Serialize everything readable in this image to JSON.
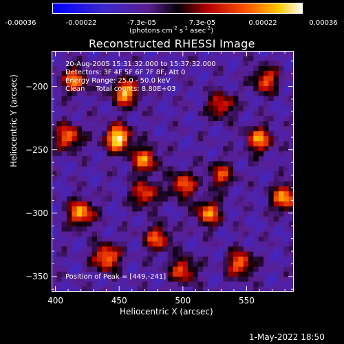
{
  "colorbar": {
    "ticks": [
      "-0.00036",
      "-0.00022",
      "-7.3e-05",
      "7.3e-05",
      "0.00022",
      "0.00036"
    ],
    "unit_main": "(photons cm",
    "unit_exp1": "-2",
    "unit_mid1": " s",
    "unit_exp2": "-1",
    "unit_mid2": " asec",
    "unit_exp3": "-2",
    "unit_end": ")"
  },
  "chart_data": {
    "type": "heatmap",
    "title": "Reconstructed RHESSI Image",
    "xlabel": "Heliocentric X (arcsec)",
    "ylabel": "Heliocentric Y (arcsec)",
    "xlim": [
      397,
      587
    ],
    "ylim": [
      -362,
      -172
    ],
    "xticks": [
      400,
      450,
      500,
      550
    ],
    "yticks": [
      -200,
      -250,
      -300,
      -350
    ],
    "value_range": [
      -0.00036,
      0.00036
    ],
    "colormap": "blue-purple-black-red-orange-yellow-white",
    "peak": [
      449,
      -241
    ],
    "hotspots": [
      {
        "x": 449,
        "y": -241,
        "value": 0.00036
      },
      {
        "x": 455,
        "y": -205,
        "value": 0.00028
      },
      {
        "x": 420,
        "y": -300,
        "value": 0.00027
      },
      {
        "x": 440,
        "y": -335,
        "value": 0.00026
      },
      {
        "x": 410,
        "y": -240,
        "value": 0.00022
      },
      {
        "x": 415,
        "y": -195,
        "value": 0.0002
      },
      {
        "x": 470,
        "y": -258,
        "value": 0.00022
      },
      {
        "x": 470,
        "y": -285,
        "value": 0.00018
      },
      {
        "x": 500,
        "y": -278,
        "value": 0.0002
      },
      {
        "x": 520,
        "y": -300,
        "value": 0.00022
      },
      {
        "x": 560,
        "y": -242,
        "value": 0.00023
      },
      {
        "x": 580,
        "y": -288,
        "value": 0.00026
      },
      {
        "x": 545,
        "y": -340,
        "value": 0.00022
      },
      {
        "x": 500,
        "y": -345,
        "value": 0.00018
      },
      {
        "x": 565,
        "y": -195,
        "value": 0.00018
      },
      {
        "x": 530,
        "y": -215,
        "value": 0.00016
      },
      {
        "x": 480,
        "y": -320,
        "value": 0.00018
      },
      {
        "x": 530,
        "y": -270,
        "value": 0.00014
      }
    ]
  },
  "annotation": {
    "time_range": "20-Aug-2005 15:31:32.000 to 15:37:32.000",
    "detectors": "Detectors: 3F 4F 5F 6F 7F 8F, Att 0",
    "energy": "Energy Range: 25.0 - 50.0 keV",
    "clean": "Clean     Total counts: 8.80E+03",
    "peak_label": "Position of Peak = [449,-241]"
  },
  "timestamp": "1-May-2022 18:50"
}
